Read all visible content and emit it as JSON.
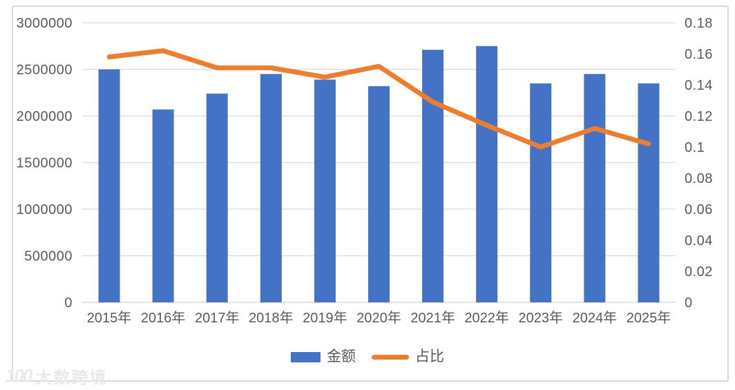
{
  "chart_data": {
    "type": "bar",
    "subtype": "combo-bar-line-dual-axis",
    "categories": [
      "2015年",
      "2016年",
      "2017年",
      "2018年",
      "2019年",
      "2020年",
      "2021年",
      "2022年",
      "2023年",
      "2024年",
      "2025年"
    ],
    "series": [
      {
        "name": "金额",
        "type": "bar",
        "axis": "left",
        "color": "#4472C4",
        "values": [
          2500000,
          2070000,
          2240000,
          2450000,
          2390000,
          2320000,
          2710000,
          2750000,
          2350000,
          2450000,
          2350000
        ]
      },
      {
        "name": "占比",
        "type": "line",
        "axis": "right",
        "color": "#ED7D31",
        "values": [
          0.158,
          0.162,
          0.151,
          0.151,
          0.145,
          0.152,
          0.129,
          0.114,
          0.1,
          0.112,
          0.102
        ]
      }
    ],
    "title": "",
    "xlabel": "",
    "ylabel": "",
    "left_axis": {
      "min": 0,
      "max": 3000000,
      "step": 500000,
      "tick_labels": [
        "3000000",
        "2500000",
        "2000000",
        "1500000",
        "1000000",
        "500000",
        "0"
      ]
    },
    "right_axis": {
      "min": 0,
      "max": 0.18,
      "step": 0.02,
      "tick_labels": [
        "0.18",
        "0.16",
        "0.14",
        "0.12",
        "0.1",
        "0.08",
        "0.06",
        "0.04",
        "0.02",
        "0"
      ]
    },
    "grid": "horizontal-only",
    "gridline_color": "#D9D9D9",
    "axis_text_color": "#595959",
    "legend_position": "bottom"
  },
  "watermark": {
    "logo": "100",
    "text": "大数跨境"
  }
}
